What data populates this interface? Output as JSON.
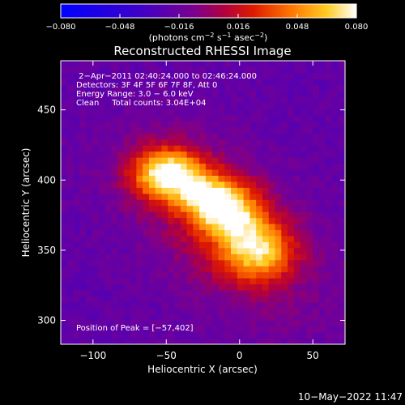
{
  "chart_data": {
    "type": "heatmap",
    "title": "Reconstructed RHESSI Image",
    "xlabel": "Heliocentric X (arcsec)",
    "ylabel": "Heliocentric Y (arcsec)",
    "xlim": [
      -122,
      72
    ],
    "ylim": [
      283,
      485
    ],
    "x_ticks": [
      -100,
      -50,
      0,
      50
    ],
    "x_tick_labels": [
      "−100",
      "−50",
      "0",
      "50"
    ],
    "y_ticks": [
      300,
      350,
      400,
      450
    ],
    "y_tick_labels": [
      "300",
      "350",
      "400",
      "450"
    ],
    "colorbar": {
      "range": [
        -0.08,
        0.08
      ],
      "ticks": [
        -0.08,
        -0.048,
        -0.016,
        0.016,
        0.048,
        0.08
      ],
      "tick_labels": [
        "−0.080",
        "−0.048",
        "−0.016",
        "0.016",
        "0.048",
        "0.080"
      ],
      "units_prefix": "(photons cm",
      "units_exp1": "−2",
      "units_mid": " s",
      "units_exp2": "−1",
      "units_mid2": " asec",
      "units_exp3": "−2",
      "units_suffix": ")"
    },
    "annotations": [
      " 2−Apr−2011 02:40:24.000 to 02:46:24.000",
      "Detectors: 3F 4F 5F 6F 7F 8F, Att 0",
      "Energy Range: 3.0 − 6.0 keV",
      "Clean     Total counts: 3.04E+04"
    ],
    "peak_label": "Position of Peak = [−57,402]",
    "peak": [
      -57,
      402
    ],
    "sources": [
      {
        "x": -50,
        "y": 405,
        "peak": 0.08,
        "sx": 17,
        "sy": 13
      },
      {
        "x": -8,
        "y": 378,
        "peak": 0.06,
        "sx": 16,
        "sy": 14
      },
      {
        "x": 12,
        "y": 350,
        "peak": 0.058,
        "sx": 17,
        "sy": 15
      },
      {
        "x": -25,
        "y": 390,
        "peak": 0.03,
        "sx": 14,
        "sy": 12
      }
    ],
    "background_level": -0.02,
    "grid": false
  },
  "footer": {
    "date": "10−May−2022 11:47"
  }
}
